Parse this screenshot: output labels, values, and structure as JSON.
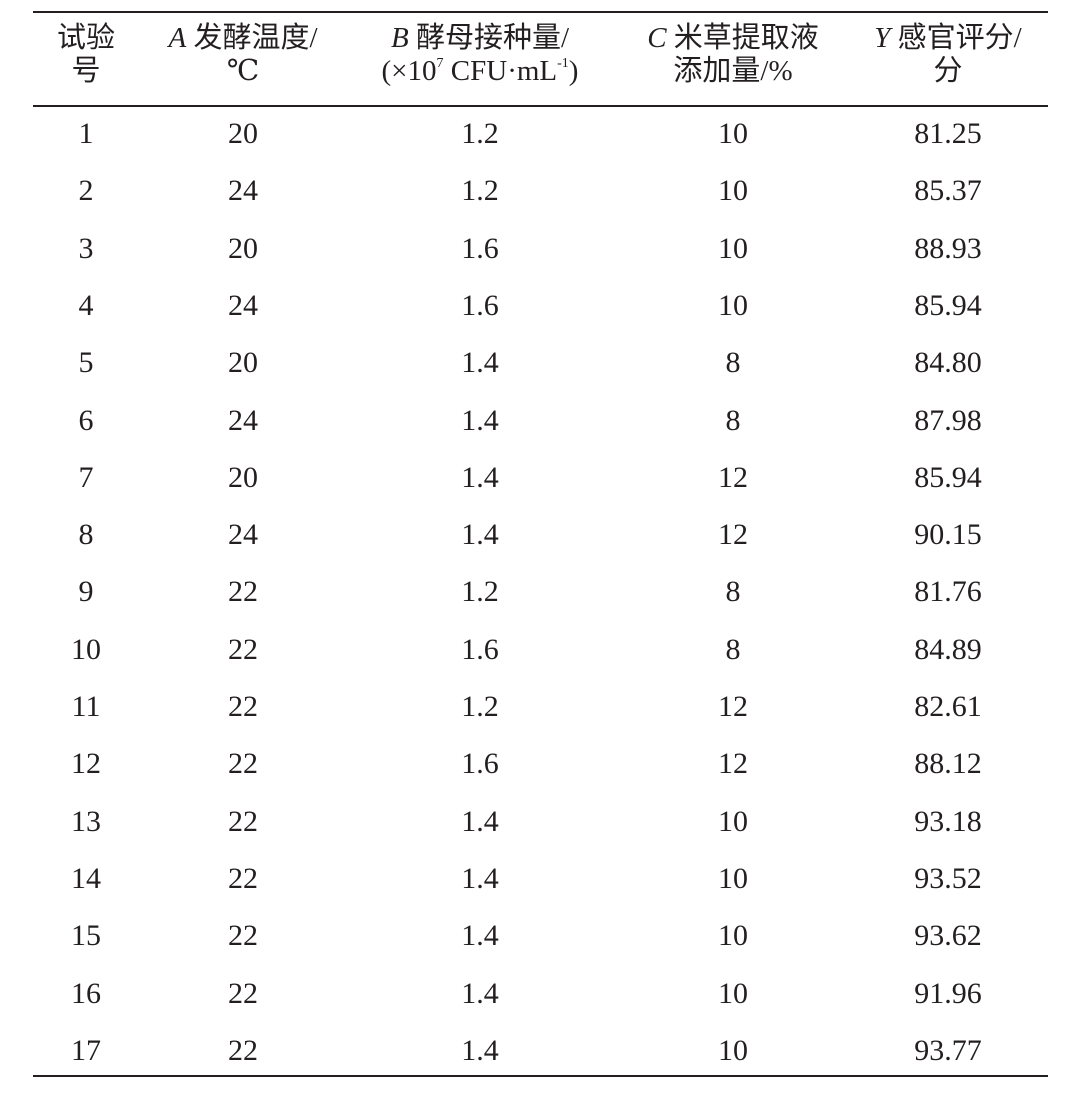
{
  "table": {
    "headers": [
      {
        "var": "",
        "line1": "试验",
        "line2": "号"
      },
      {
        "var": "A",
        "line1": "发酵温度/",
        "line2": "℃"
      },
      {
        "var": "B",
        "line1": "酵母接种量/",
        "line2_pre": "(×10",
        "line2_sup": "7",
        "line2_mid": " CFU·mL",
        "line2_sup2": "-1",
        "line2_post": ")"
      },
      {
        "var": "C",
        "line1": "米草提取液",
        "line2": "添加量/%"
      },
      {
        "var": "Y",
        "line1": "感官评分/",
        "line2": "分"
      }
    ],
    "rows": [
      [
        "1",
        "20",
        "1.2",
        "10",
        "81.25"
      ],
      [
        "2",
        "24",
        "1.2",
        "10",
        "85.37"
      ],
      [
        "3",
        "20",
        "1.6",
        "10",
        "88.93"
      ],
      [
        "4",
        "24",
        "1.6",
        "10",
        "85.94"
      ],
      [
        "5",
        "20",
        "1.4",
        "8",
        "84.80"
      ],
      [
        "6",
        "24",
        "1.4",
        "8",
        "87.98"
      ],
      [
        "7",
        "20",
        "1.4",
        "12",
        "85.94"
      ],
      [
        "8",
        "24",
        "1.4",
        "12",
        "90.15"
      ],
      [
        "9",
        "22",
        "1.2",
        "8",
        "81.76"
      ],
      [
        "10",
        "22",
        "1.6",
        "8",
        "84.89"
      ],
      [
        "11",
        "22",
        "1.2",
        "12",
        "82.61"
      ],
      [
        "12",
        "22",
        "1.6",
        "12",
        "88.12"
      ],
      [
        "13",
        "22",
        "1.4",
        "10",
        "93.18"
      ],
      [
        "14",
        "22",
        "1.4",
        "10",
        "93.52"
      ],
      [
        "15",
        "22",
        "1.4",
        "10",
        "93.62"
      ],
      [
        "16",
        "22",
        "1.4",
        "10",
        "91.96"
      ],
      [
        "17",
        "22",
        "1.4",
        "10",
        "93.77"
      ]
    ]
  }
}
